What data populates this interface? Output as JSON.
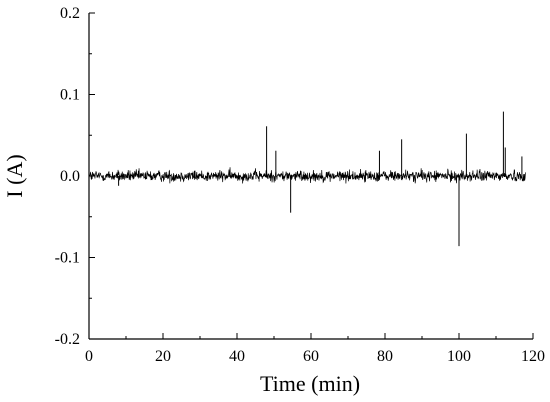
{
  "chart_data": {
    "type": "line",
    "title": "",
    "xlabel": "Time (min)",
    "ylabel": "I (A)",
    "xlim": [
      0,
      120
    ],
    "ylim": [
      -0.2,
      0.2
    ],
    "x_ticks": [
      0,
      20,
      40,
      60,
      80,
      100,
      120
    ],
    "y_ticks": [
      0.2,
      0.1,
      0.0,
      -0.1,
      -0.2
    ],
    "x_tick_labels": [
      "0",
      "20",
      "40",
      "60",
      "80",
      "100",
      "120"
    ],
    "y_tick_labels": [
      "0.2",
      "0.1",
      "0.0",
      "-0.1",
      "-0.2"
    ],
    "grid": false,
    "legend": "none",
    "series": [
      {
        "line_color": "#000000",
        "baseline": 0.0,
        "noise_amplitude": 0.012,
        "x_range": [
          0,
          118
        ],
        "spikes": [
          {
            "x": 8,
            "y": -0.012
          },
          {
            "x": 48,
            "y": 0.061
          },
          {
            "x": 50.5,
            "y": 0.031
          },
          {
            "x": 54.5,
            "y": -0.045
          },
          {
            "x": 78.5,
            "y": 0.031
          },
          {
            "x": 84.5,
            "y": 0.045
          },
          {
            "x": 100,
            "y": -0.086
          },
          {
            "x": 102,
            "y": 0.052
          },
          {
            "x": 112,
            "y": 0.079
          },
          {
            "x": 112.5,
            "y": 0.035
          },
          {
            "x": 117,
            "y": 0.024
          }
        ]
      }
    ]
  }
}
